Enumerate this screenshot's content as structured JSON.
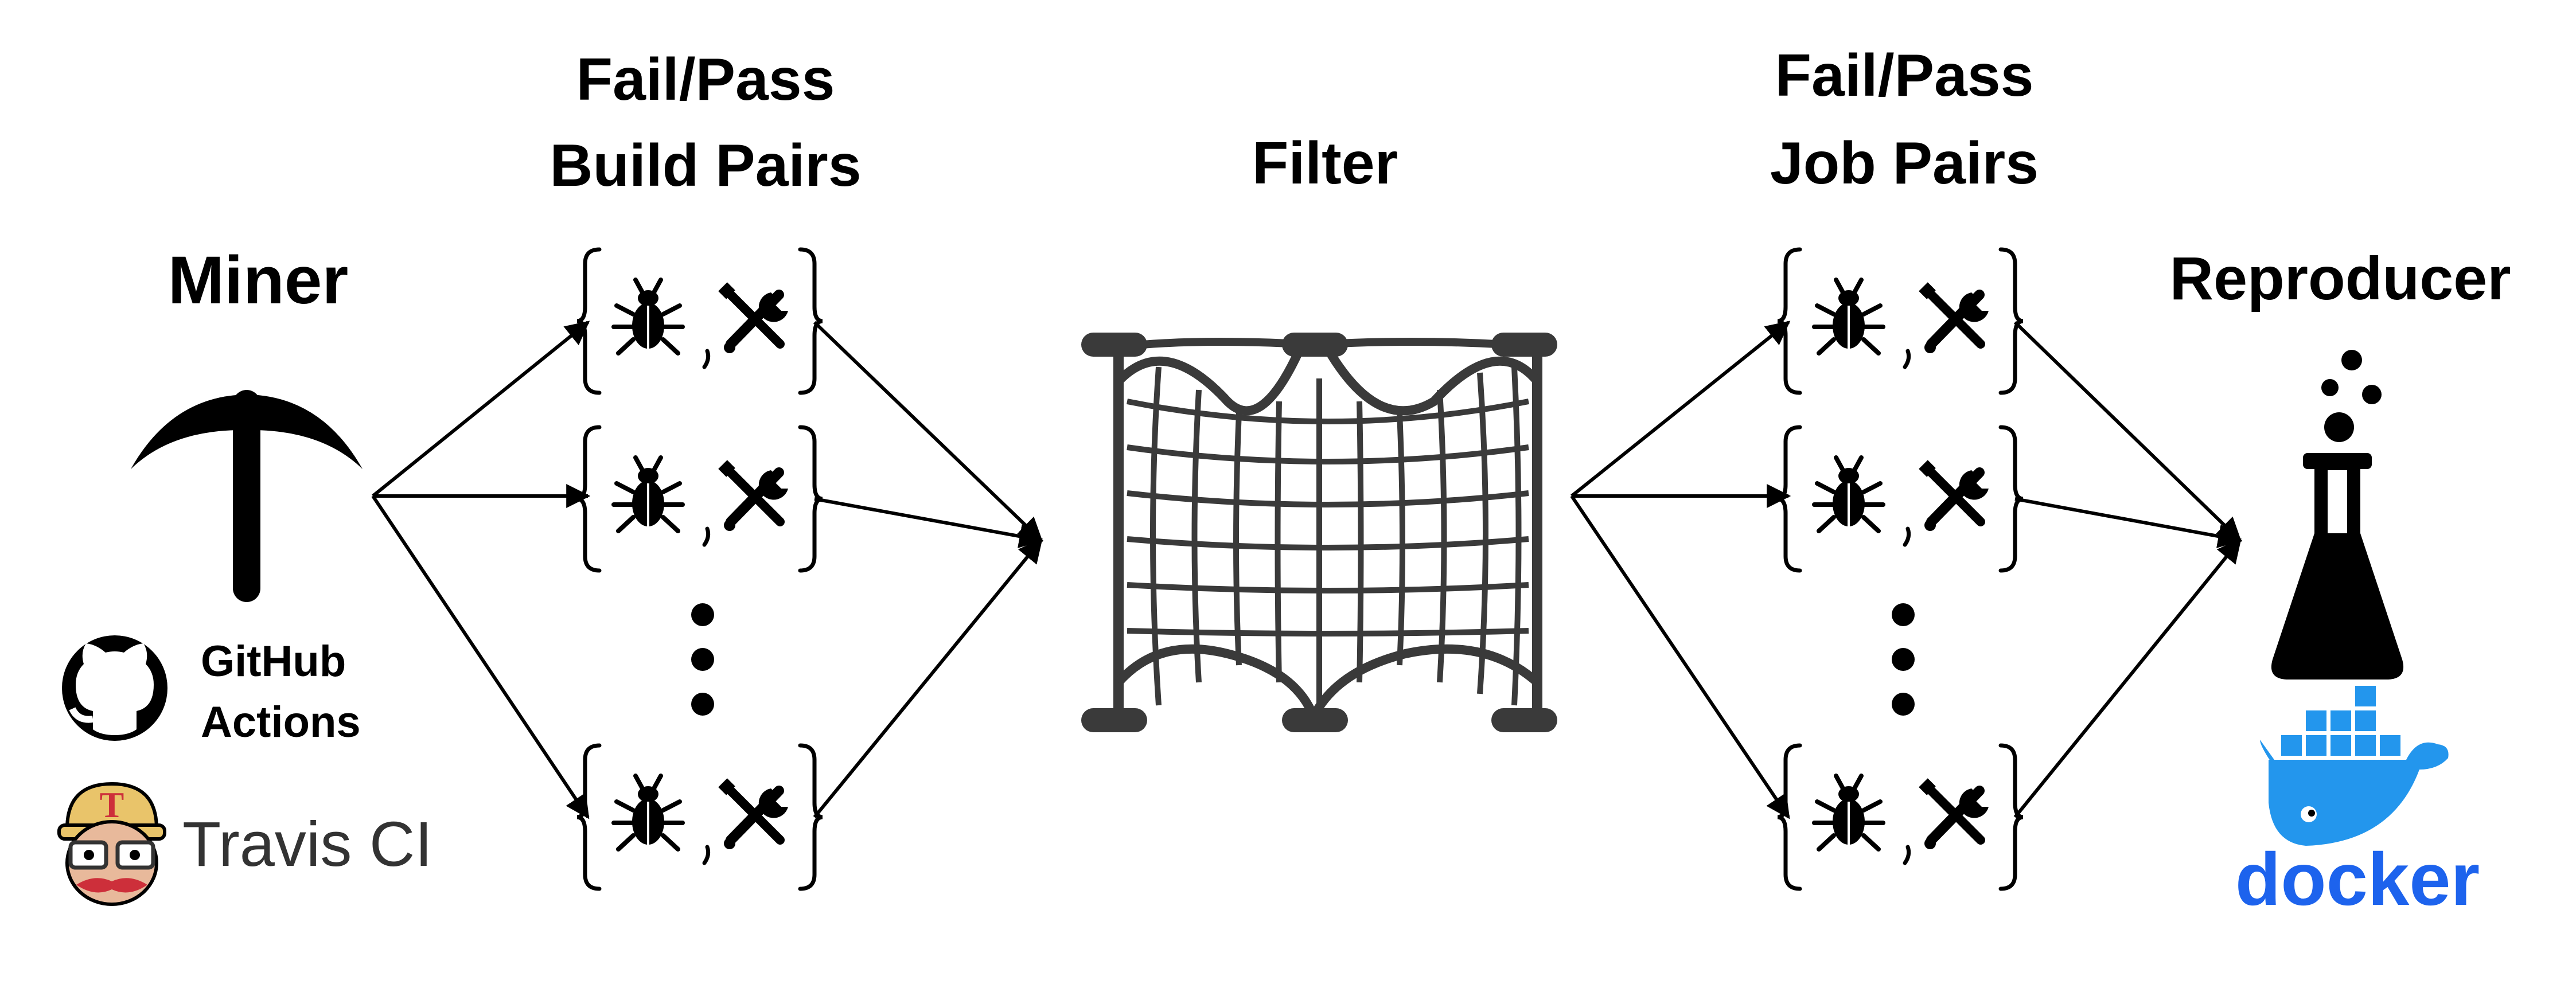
{
  "stages": {
    "miner": {
      "title": "Miner"
    },
    "build_pairs": {
      "title_line1": "Fail/Pass",
      "title_line2": "Build Pairs"
    },
    "filter": {
      "title": "Filter"
    },
    "job_pairs": {
      "title_line1": "Fail/Pass",
      "title_line2": "Job Pairs"
    },
    "reproducer": {
      "title": "Reproducer"
    }
  },
  "sources": {
    "github": {
      "line1": "GitHub",
      "line2": "Actions"
    },
    "travis": {
      "label": "Travis CI"
    }
  },
  "docker": {
    "label": "docker",
    "color": "#1d63ed",
    "whale_color": "#2396ed"
  },
  "pair_separator": ",",
  "icons": [
    "pickaxe-icon",
    "github-icon",
    "travis-ci-icon",
    "bug-icon",
    "wrench-icon",
    "net-filter-icon",
    "flask-icon",
    "docker-whale-icon"
  ],
  "colors": {
    "ink": "#000000",
    "net": "#3a3a3a",
    "travis_yellow": "#e9c46a",
    "travis_red": "#cd2f3a"
  }
}
